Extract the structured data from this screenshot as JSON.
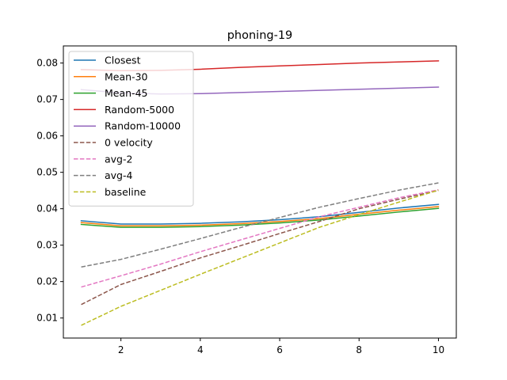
{
  "chart_data": {
    "type": "line",
    "title": "phoning-19",
    "xlabel": "",
    "ylabel": "",
    "x": [
      1,
      2,
      3,
      4,
      5,
      6,
      7,
      8,
      9,
      10
    ],
    "xlim": [
      0.55,
      10.45
    ],
    "ylim": [
      0.0045,
      0.0847
    ],
    "xticks": [
      2,
      4,
      6,
      8,
      10
    ],
    "yticks": [
      0.01,
      0.02,
      0.03,
      0.04,
      0.05,
      0.06,
      0.07,
      0.08
    ],
    "ytick_labels": [
      "0.01",
      "0.02",
      "0.03",
      "0.04",
      "0.05",
      "0.06",
      "0.07",
      "0.08"
    ],
    "grid": false,
    "legend_position": "top-left",
    "series": [
      {
        "name": "Closest",
        "color": "#1f77b4",
        "dash": "solid",
        "values": [
          0.0367,
          0.0358,
          0.0358,
          0.036,
          0.0364,
          0.037,
          0.0378,
          0.039,
          0.0402,
          0.0412
        ]
      },
      {
        "name": "Mean-30",
        "color": "#ff7f0e",
        "dash": "solid",
        "values": [
          0.0362,
          0.0353,
          0.0353,
          0.0355,
          0.0359,
          0.0365,
          0.0373,
          0.0385,
          0.0396,
          0.0406
        ]
      },
      {
        "name": "Mean-45",
        "color": "#2ca02c",
        "dash": "solid",
        "values": [
          0.0357,
          0.0349,
          0.0349,
          0.0351,
          0.0355,
          0.0361,
          0.0369,
          0.038,
          0.0391,
          0.0401
        ]
      },
      {
        "name": "Random-5000",
        "color": "#d62728",
        "dash": "solid",
        "values": [
          0.0782,
          0.0779,
          0.078,
          0.0783,
          0.0788,
          0.0792,
          0.0796,
          0.08,
          0.0803,
          0.0806
        ]
      },
      {
        "name": "Random-10000",
        "color": "#9467bd",
        "dash": "solid",
        "values": [
          0.0727,
          0.0718,
          0.0715,
          0.0716,
          0.0719,
          0.0722,
          0.0725,
          0.0728,
          0.0731,
          0.0734
        ]
      },
      {
        "name": "0 velocity",
        "color": "#8c564b",
        "dash": "dashed",
        "values": [
          0.0137,
          0.0192,
          0.0228,
          0.0265,
          0.0298,
          0.0332,
          0.0365,
          0.04,
          0.0426,
          0.045
        ]
      },
      {
        "name": "avg-2",
        "color": "#e377c2",
        "dash": "dashed",
        "values": [
          0.0185,
          0.0216,
          0.0248,
          0.0282,
          0.0314,
          0.0346,
          0.0378,
          0.0404,
          0.043,
          0.0452
        ]
      },
      {
        "name": "avg-4",
        "color": "#7f7f7f",
        "dash": "dashed",
        "values": [
          0.024,
          0.0261,
          0.0289,
          0.0318,
          0.0348,
          0.0376,
          0.0404,
          0.0428,
          0.0451,
          0.0471
        ]
      },
      {
        "name": "baseline",
        "color": "#bcbd22",
        "dash": "dashed",
        "values": [
          0.008,
          0.0132,
          0.0176,
          0.022,
          0.0263,
          0.0306,
          0.0349,
          0.0384,
          0.0418,
          0.0451
        ]
      }
    ]
  }
}
